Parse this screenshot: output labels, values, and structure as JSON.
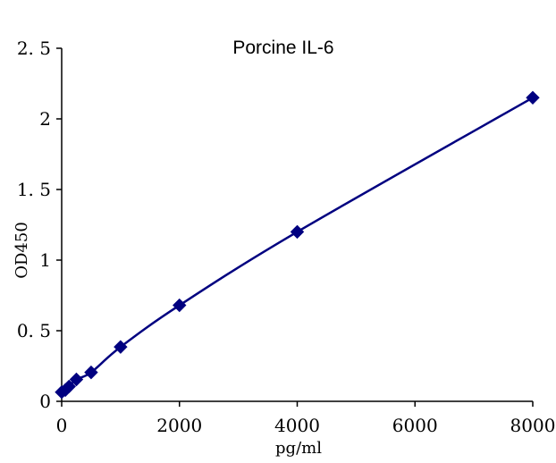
{
  "chart_data": {
    "type": "scatter",
    "title": "Porcine IL-6",
    "xlabel": "pg/ml",
    "ylabel": "OD450",
    "xlim": [
      0,
      8000
    ],
    "ylim": [
      0,
      2.5
    ],
    "xticks": [
      {
        "value": 0,
        "label": "0"
      },
      {
        "value": 2000,
        "label": "2000"
      },
      {
        "value": 4000,
        "label": "4000"
      },
      {
        "value": 6000,
        "label": "6000"
      },
      {
        "value": 8000,
        "label": "8000"
      }
    ],
    "yticks": [
      {
        "value": 0,
        "label": "0"
      },
      {
        "value": 0.5,
        "label": "0. 5"
      },
      {
        "value": 1,
        "label": "1"
      },
      {
        "value": 1.5,
        "label": "1. 5"
      },
      {
        "value": 2,
        "label": "2"
      },
      {
        "value": 2.5,
        "label": "2. 5"
      }
    ],
    "grid": false,
    "marker": "diamond",
    "series_color": "#000080",
    "series": [
      {
        "x": [
          0,
          62.5,
          125,
          250,
          500,
          1000,
          2000,
          4000,
          8000
        ],
        "y": [
          0.065,
          0.08,
          0.105,
          0.155,
          0.205,
          0.385,
          0.68,
          1.2,
          2.15
        ]
      }
    ],
    "trendline": "smooth fitted curve"
  }
}
